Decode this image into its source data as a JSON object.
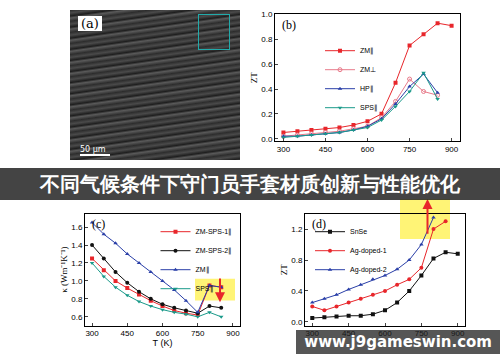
{
  "banner": "不同气候条件下守门员手套材质创新与性能优化",
  "watermark": "www.j9gameswin.com",
  "image_panel": {
    "label": "(a)",
    "scale_bar": "50 μm"
  },
  "chart_data": [
    {
      "type": "line",
      "title": "(b)",
      "ylabel": "ZT",
      "x": [
        300,
        350,
        400,
        450,
        500,
        550,
        600,
        650,
        700,
        750,
        800,
        850,
        900
      ],
      "xlim": [
        270,
        930
      ],
      "xticks": [
        300,
        450,
        600,
        750,
        900
      ],
      "ylim": [
        -0.02,
        1.0
      ],
      "yticks": [
        {
          "value": 0,
          "label": "0.0"
        },
        {
          "value": 0.2,
          "label": "0.2"
        },
        {
          "value": 0.4,
          "label": "0.4"
        },
        {
          "value": 0.6,
          "label": "0.6"
        },
        {
          "value": 0.8,
          "label": "0.8"
        },
        {
          "value": 1.0,
          "label": "1.0"
        }
      ],
      "legend": "upper left",
      "series": [
        {
          "name": "ZM∥",
          "color": "#e8262b",
          "marker": "square",
          "values": [
            0.05,
            0.06,
            0.07,
            0.08,
            0.09,
            0.11,
            0.14,
            0.2,
            0.45,
            0.75,
            0.84,
            0.93,
            0.91
          ]
        },
        {
          "name": "ZM⊥",
          "color": "#e87a8a",
          "marker": "circle-open",
          "values": [
            0.02,
            0.03,
            0.04,
            0.05,
            0.06,
            0.08,
            0.1,
            0.17,
            0.3,
            0.48,
            0.38,
            0.35,
            null
          ]
        },
        {
          "name": "HP∥",
          "color": "#2a3fa8",
          "marker": "triangle-up",
          "values": [
            0.02,
            0.02,
            0.03,
            0.04,
            0.05,
            0.07,
            0.1,
            0.16,
            0.28,
            0.42,
            0.52,
            0.37,
            null
          ]
        },
        {
          "name": "SPS∥",
          "color": "#1a9a8a",
          "marker": "triangle-down",
          "values": [
            0.01,
            0.02,
            0.03,
            0.04,
            0.05,
            0.07,
            0.09,
            0.15,
            0.26,
            0.38,
            0.53,
            0.32,
            null
          ]
        }
      ]
    },
    {
      "type": "line",
      "title": "(c)",
      "xlabel": "T (K)",
      "ylabel": "κ (Wm⁻¹K⁻¹)",
      "x": [
        300,
        350,
        400,
        450,
        500,
        550,
        600,
        650,
        700,
        750,
        800,
        850
      ],
      "xlim": [
        270,
        930
      ],
      "xticks": [
        300,
        450,
        600,
        750,
        900
      ],
      "ylim": [
        0.5,
        1.75
      ],
      "yticks": [
        0.6,
        0.8,
        {
          "value": 1.0,
          "label": "1.0"
        },
        1.2,
        1.4,
        1.6
      ],
      "legend": "upper right",
      "series": [
        {
          "name": "ZM-SPS-1∥",
          "color": "#e8262b",
          "marker": "square",
          "values": [
            1.25,
            1.12,
            1.0,
            0.92,
            0.85,
            0.78,
            0.72,
            0.67,
            0.64,
            0.62,
            0.95,
            0.93
          ]
        },
        {
          "name": "ZM-SPS-2∥",
          "color": "#111111",
          "marker": "circle",
          "values": [
            1.4,
            1.25,
            1.1,
            0.98,
            0.88,
            0.8,
            0.74,
            0.7,
            0.67,
            0.64,
            0.72,
            0.7
          ]
        },
        {
          "name": "ZM∥",
          "color": "#2a3fa8",
          "marker": "triangle-up",
          "values": [
            1.65,
            1.52,
            1.42,
            1.3,
            1.2,
            1.1,
            1.0,
            0.9,
            0.78,
            0.65,
            0.95,
            0.93
          ]
        },
        {
          "name": "SPS∥",
          "color": "#1a9a8a",
          "marker": "triangle-down",
          "values": [
            1.2,
            1.05,
            0.93,
            0.84,
            0.77,
            0.72,
            0.68,
            0.65,
            0.63,
            0.6,
            0.65,
            0.6
          ]
        }
      ]
    },
    {
      "type": "line",
      "title": "(d)",
      "ylabel": "ZT",
      "x": [
        300,
        350,
        400,
        450,
        500,
        550,
        600,
        650,
        700,
        750,
        800,
        850,
        900
      ],
      "xlim": [
        270,
        930
      ],
      "xticks": [
        300,
        450,
        600,
        750,
        900
      ],
      "ylim": [
        -0.05,
        1.4
      ],
      "yticks": [
        {
          "value": 0,
          "label": "0.0"
        },
        0.4,
        0.8,
        1.2
      ],
      "legend": "upper left",
      "series": [
        {
          "name": "SnSe",
          "color": "#111111",
          "marker": "square",
          "values": [
            0.05,
            0.06,
            0.07,
            0.08,
            0.08,
            0.1,
            0.15,
            0.25,
            0.4,
            0.6,
            0.82,
            0.9,
            0.88
          ]
        },
        {
          "name": "Ag-doped-1",
          "color": "#e8262b",
          "marker": "circle",
          "values": [
            0.2,
            0.15,
            0.2,
            0.25,
            0.3,
            0.35,
            0.4,
            0.48,
            0.55,
            0.7,
            1.2,
            1.3,
            null
          ]
        },
        {
          "name": "Ag-doped-2",
          "color": "#2a3fa8",
          "marker": "triangle-up",
          "values": [
            0.25,
            0.3,
            0.35,
            0.42,
            0.48,
            0.55,
            0.6,
            0.68,
            0.8,
            1.0,
            1.35,
            null,
            null
          ]
        }
      ]
    }
  ]
}
